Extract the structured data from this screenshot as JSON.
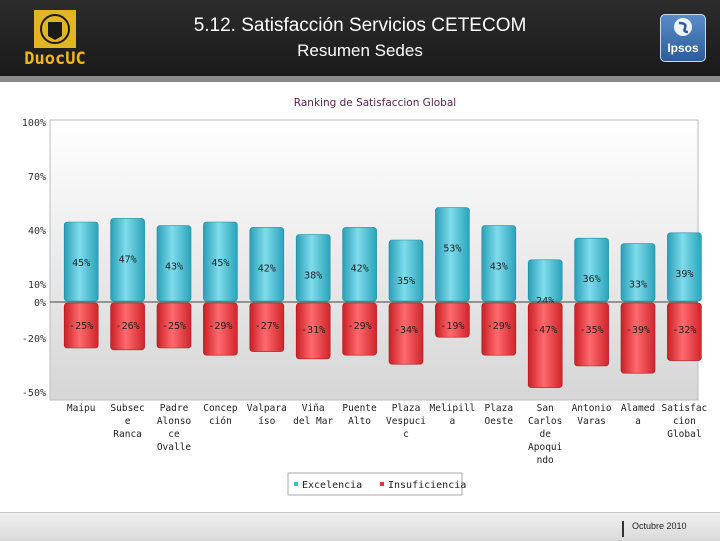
{
  "header": {
    "title": "5.12. Satisfacción Servicios CETECOM",
    "subtitle": "Resumen Sedes",
    "logo_left": "DuocUC",
    "logo_right": "Ipsos"
  },
  "footer": {
    "date": "Octubre 2010"
  },
  "colors": {
    "excelencia": "#3fbcd2",
    "insuficiencia": "#e8333a",
    "header_bg": "#222222"
  },
  "chart_data": {
    "type": "bar",
    "title": "Ranking de Satisfaccion Global",
    "y_ticks": [
      "100%",
      "70%",
      "40%",
      "10%",
      "0%",
      "-20%",
      "-50%"
    ],
    "ylim": [
      -50,
      100
    ],
    "categories": [
      [
        "Maipu"
      ],
      [
        "Subsec",
        "e",
        "Ranca"
      ],
      [
        "Padre",
        "Alonso",
        "ce",
        "Ovalle"
      ],
      [
        "Concep",
        "ción"
      ],
      [
        "Valpara",
        "íso"
      ],
      [
        "Viña",
        "del Mar"
      ],
      [
        "Puente",
        "Alto"
      ],
      [
        "Plaza",
        "Vespuci",
        "c"
      ],
      [
        "Melipill",
        "a"
      ],
      [
        "Plaza",
        "Oeste"
      ],
      [
        "San",
        "Carlos",
        "de",
        "Apoqui",
        "ndo"
      ],
      [
        "Antonio",
        "Varas"
      ],
      [
        "Alamed",
        "a"
      ],
      [
        "Satisfac",
        "cion",
        "Global"
      ]
    ],
    "series": [
      {
        "name": "Excelencia",
        "values": [
          45,
          47,
          43,
          45,
          42,
          38,
          42,
          35,
          53,
          43,
          24,
          36,
          33,
          39
        ],
        "labels": [
          "45%",
          "47%",
          "43%",
          "45%",
          "42%",
          "38%",
          "42%",
          "35%",
          "53%",
          "43%",
          "24%",
          "36%",
          "33%",
          "39%"
        ]
      },
      {
        "name": "Insuficiencia",
        "values": [
          -25,
          -26,
          -25,
          -29,
          -27,
          -31,
          -29,
          -34,
          -19,
          -29,
          -47,
          -35,
          -39,
          -32
        ],
        "labels": [
          "-25%",
          "-26%",
          "-25%",
          "-29%",
          "-27%",
          "-31%",
          "-29%",
          "-34%",
          "-19%",
          "-29%",
          "-47%",
          "-35%",
          "-39%",
          "-32%"
        ]
      }
    ],
    "legend": [
      "Excelencia",
      "Insuficiencia"
    ],
    "legend_position": "bottom-center"
  }
}
